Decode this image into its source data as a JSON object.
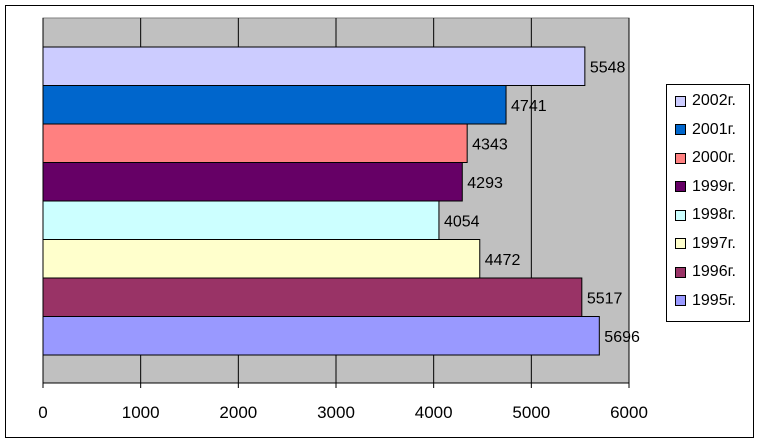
{
  "chart_data": {
    "type": "bar",
    "orientation": "horizontal",
    "title": "",
    "xlabel": "",
    "ylabel": "",
    "xlim": [
      0,
      6000
    ],
    "x_ticks": [
      "0",
      "1000",
      "2000",
      "3000",
      "4000",
      "5000",
      "6000"
    ],
    "grid": "vertical",
    "legend_position": "right",
    "series": [
      {
        "name": "2002г.",
        "value": 5548,
        "color": "#ccccff"
      },
      {
        "name": "2001г.",
        "value": 4741,
        "color": "#0066cc"
      },
      {
        "name": "2000г.",
        "value": 4343,
        "color": "#ff8080"
      },
      {
        "name": "1999г.",
        "value": 4293,
        "color": "#660066"
      },
      {
        "name": "1998г.",
        "value": 4054,
        "color": "#ccffff"
      },
      {
        "name": "1997г.",
        "value": 4472,
        "color": "#ffffcc"
      },
      {
        "name": "1996г.",
        "value": 5517,
        "color": "#993366"
      },
      {
        "name": "1995г.",
        "value": 5696,
        "color": "#9999ff"
      }
    ],
    "plot_background": "#c0c0c0"
  }
}
